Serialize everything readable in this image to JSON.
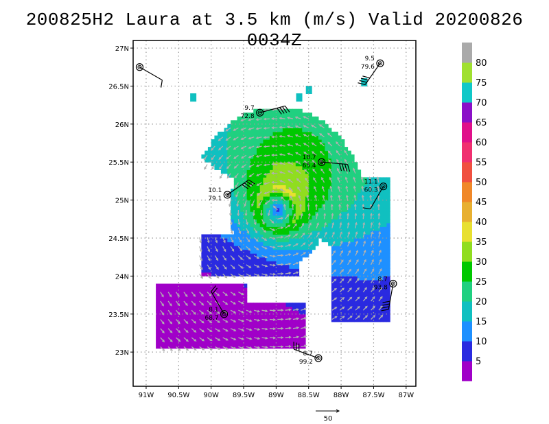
{
  "title": "200825H2 Laura at 3.5 km (m/s) Valid 20200826 0034Z",
  "chart_data": {
    "type": "heatmap",
    "title": "200825H2 Laura at 3.5 km (m/s) Valid 20200826 0034Z",
    "units": "m/s",
    "x_ticks": [
      "91W",
      "90.5W",
      "90W",
      "89.5W",
      "89W",
      "88.5W",
      "88W",
      "87.5W",
      "87W"
    ],
    "y_ticks": [
      "23N",
      "23.5N",
      "24N",
      "24.5N",
      "25N",
      "25.5N",
      "26N",
      "26.5N",
      "27N"
    ],
    "xlim": [
      -91.2,
      -86.85
    ],
    "ylim": [
      22.55,
      27.1
    ],
    "grid": true,
    "storm_center": [
      -89.0,
      24.85
    ],
    "colorbar": {
      "labels": [
        "5",
        "10",
        "15",
        "20",
        "25",
        "30",
        "35",
        "40",
        "45",
        "50",
        "55",
        "60",
        "65",
        "70",
        "75",
        "80"
      ],
      "colors": [
        "#a000c8",
        "#2a2ae0",
        "#1e90ff",
        "#10c0c0",
        "#20d080",
        "#00c800",
        "#90dd20",
        "#e8e030",
        "#e8b030",
        "#f08828",
        "#f05040",
        "#f03070",
        "#e0108a",
        "#8a10c8",
        "#10c8c8",
        "#a0e030",
        "#aaaaaa"
      ]
    },
    "reference_vector": {
      "label": "50",
      "value": 50
    },
    "stations": [
      {
        "top": "",
        "bottom": "",
        "lon": -91.1,
        "lat": 26.75,
        "barb_angle": 30,
        "barbs": 1
      },
      {
        "top": "9.5",
        "bottom": "79.6",
        "lon": -87.4,
        "lat": 26.8,
        "barb_angle": 125,
        "barbs": 4
      },
      {
        "top": "9.7",
        "bottom": "72.8",
        "lon": -89.25,
        "lat": 26.15,
        "barb_angle": -15,
        "barbs": 4
      },
      {
        "top": "10.7",
        "bottom": "65.4",
        "lon": -88.3,
        "lat": 25.5,
        "barb_angle": 5,
        "barbs": 4
      },
      {
        "top": "10.1",
        "bottom": "79.1",
        "lon": -89.75,
        "lat": 25.07,
        "barb_angle": -35,
        "barbs": 4
      },
      {
        "top": "11.1",
        "bottom": "60.3",
        "lon": -87.35,
        "lat": 25.18,
        "barb_angle": 120,
        "barbs": 1
      },
      {
        "top": "8.7",
        "bottom": "93.8",
        "lon": -87.2,
        "lat": 23.9,
        "barb_angle": 100,
        "barbs": 4
      },
      {
        "top": "8.1",
        "bottom": "68.7",
        "lon": -89.8,
        "lat": 23.5,
        "barb_angle": -120,
        "barbs": 2
      },
      {
        "top": "8.7",
        "bottom": "99.2",
        "lon": -88.35,
        "lat": 22.92,
        "barb_angle": 200,
        "barbs": 3
      }
    ]
  }
}
